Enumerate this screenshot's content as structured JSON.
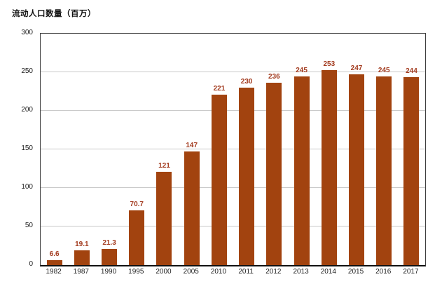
{
  "chart_data": {
    "type": "bar",
    "title": "流动人口数量（百万）",
    "categories": [
      "1982",
      "1987",
      "1990",
      "1995",
      "2000",
      "2005",
      "2010",
      "2011",
      "2012",
      "2013",
      "2014",
      "2015",
      "2016",
      "2017"
    ],
    "values": [
      6.6,
      19.1,
      21.3,
      70.7,
      121,
      147,
      221,
      230,
      236,
      245,
      253,
      247,
      245,
      244
    ],
    "value_labels": [
      "6.6",
      "19.1",
      "21.3",
      "70.7",
      "121",
      "147",
      "221",
      "230",
      "236",
      "245",
      "253",
      "247",
      "245",
      "244"
    ],
    "xlabel": "",
    "ylabel": "",
    "ylim": [
      0,
      300
    ],
    "yticks": [
      0,
      50,
      100,
      150,
      200,
      250,
      300
    ],
    "grid": true,
    "legend": false,
    "colors": {
      "bar": "#A2430F",
      "value_label": "#A33B1F",
      "grid": "#C9C9C9",
      "frame": "#3F3F3F",
      "axis_text": "#1A1A1A",
      "background": "#FFFFFF"
    }
  }
}
